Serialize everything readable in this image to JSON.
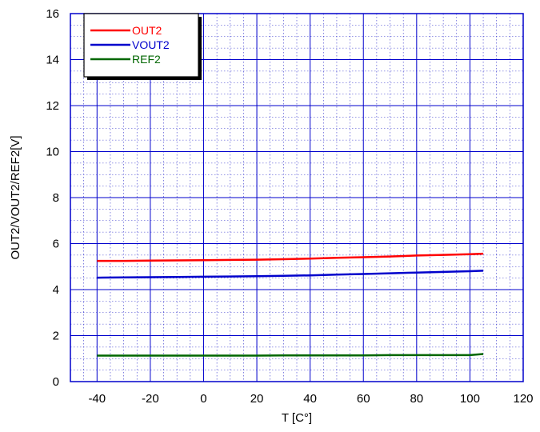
{
  "chart_data": {
    "type": "line",
    "xlabel": "T  [C°]",
    "ylabel": "OUT2/VOUT2/REF2[V]",
    "xlim": [
      -50,
      120
    ],
    "ylim": [
      0,
      16
    ],
    "xticks": [
      -40,
      -20,
      0,
      20,
      40,
      60,
      80,
      100,
      120
    ],
    "yticks": [
      0,
      2,
      4,
      6,
      8,
      10,
      12,
      14,
      16
    ],
    "grid": true,
    "legend_position": "top-left",
    "x": [
      -40,
      -30,
      -20,
      -10,
      0,
      10,
      20,
      30,
      40,
      50,
      60,
      70,
      80,
      90,
      100,
      105
    ],
    "series": [
      {
        "name": "OUT2",
        "color": "#ff0000",
        "values": [
          5.25,
          5.25,
          5.26,
          5.27,
          5.28,
          5.29,
          5.3,
          5.32,
          5.35,
          5.38,
          5.41,
          5.44,
          5.48,
          5.51,
          5.54,
          5.56
        ]
      },
      {
        "name": "VOUT2",
        "color": "#0000cc",
        "values": [
          4.52,
          4.53,
          4.54,
          4.55,
          4.56,
          4.57,
          4.58,
          4.6,
          4.62,
          4.65,
          4.68,
          4.71,
          4.74,
          4.77,
          4.8,
          4.82
        ]
      },
      {
        "name": "REF2",
        "color": "#006600",
        "values": [
          1.13,
          1.13,
          1.13,
          1.13,
          1.13,
          1.13,
          1.13,
          1.14,
          1.14,
          1.14,
          1.14,
          1.15,
          1.15,
          1.15,
          1.15,
          1.2
        ]
      }
    ]
  }
}
